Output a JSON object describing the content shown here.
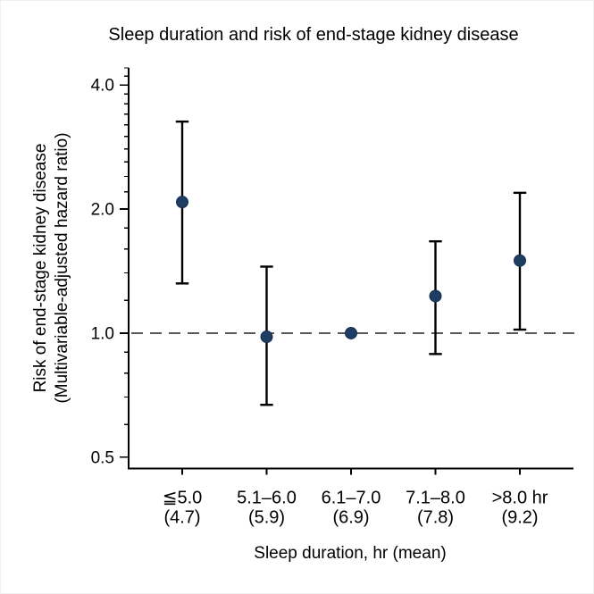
{
  "chart_data": {
    "type": "scatter",
    "title": "Sleep duration and risk of end-stage kidney disease",
    "xlabel": "Sleep duration, hr (mean)",
    "ylabel_line1": "Risk of end-stage kidney disease",
    "ylabel_line2": "(Multivariable-adjusted hazard ratio)",
    "categories": [
      "≦5.0",
      "5.1–6.0",
      "6.1–7.0",
      "7.1–8.0",
      ">8.0 hr"
    ],
    "category_means": [
      "(4.7)",
      "(5.9)",
      "(6.9)",
      "(7.8)",
      "(9.2)"
    ],
    "series": [
      {
        "name": "Multivariable-adjusted hazard ratio",
        "hr": [
          2.08,
          0.98,
          1.0,
          1.23,
          1.5
        ],
        "ci_low": [
          1.32,
          0.67,
          null,
          0.89,
          1.02
        ],
        "ci_high": [
          3.26,
          1.45,
          null,
          1.67,
          2.19
        ],
        "reference_index": 2
      }
    ],
    "yscale": "log",
    "ylim": [
      0.47,
      4.4
    ],
    "yticks": [
      0.5,
      1.0,
      2.0,
      4.0
    ],
    "ytick_labels": [
      "0.5",
      "1.0",
      "2.0",
      "4.0"
    ],
    "yminor_ticks": [
      0.6,
      0.7,
      0.8,
      0.9,
      1.2,
      1.4,
      1.6,
      1.8,
      2.2,
      2.4,
      2.6,
      2.8,
      3.0,
      3.2,
      3.4,
      3.6,
      3.8,
      4.2,
      4.4
    ],
    "reference_line": 1.0,
    "grid": false,
    "legend": "none",
    "colors": {
      "marker": "#1e3d62",
      "marker_edge": "#16304f",
      "error_bar": "#000000",
      "reference_line": "#404040",
      "axis": "#000000",
      "text": "#000000"
    }
  }
}
